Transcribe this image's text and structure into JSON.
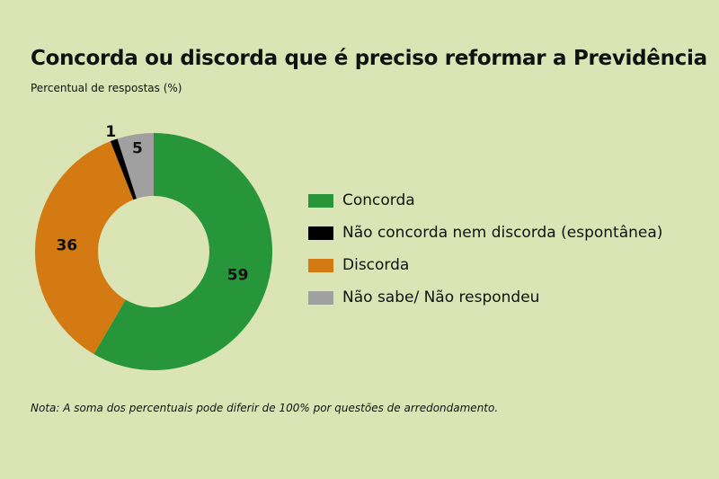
{
  "chart_data": {
    "type": "pie",
    "variant": "donut",
    "title": "Concorda ou discorda que é preciso reformar a Previdência",
    "subtitle": "Percentual de respostas (%)",
    "note": "Nota: A soma dos percentuais pode diferir de 100% por questões de arredondamento.",
    "legend_position": "right",
    "slices": [
      {
        "label": "Concorda",
        "value": 59,
        "color": "#27963a"
      },
      {
        "label": "Discorda",
        "value": 36,
        "color": "#d47a12"
      },
      {
        "label": "Não concorda nem discorda (espontânea)",
        "value": 1,
        "color": "#000000"
      },
      {
        "label": "Não sabe/ Não respondeu",
        "value": 5,
        "color": "#a0a0a0"
      }
    ],
    "legend_order": [
      0,
      2,
      1,
      3
    ]
  }
}
